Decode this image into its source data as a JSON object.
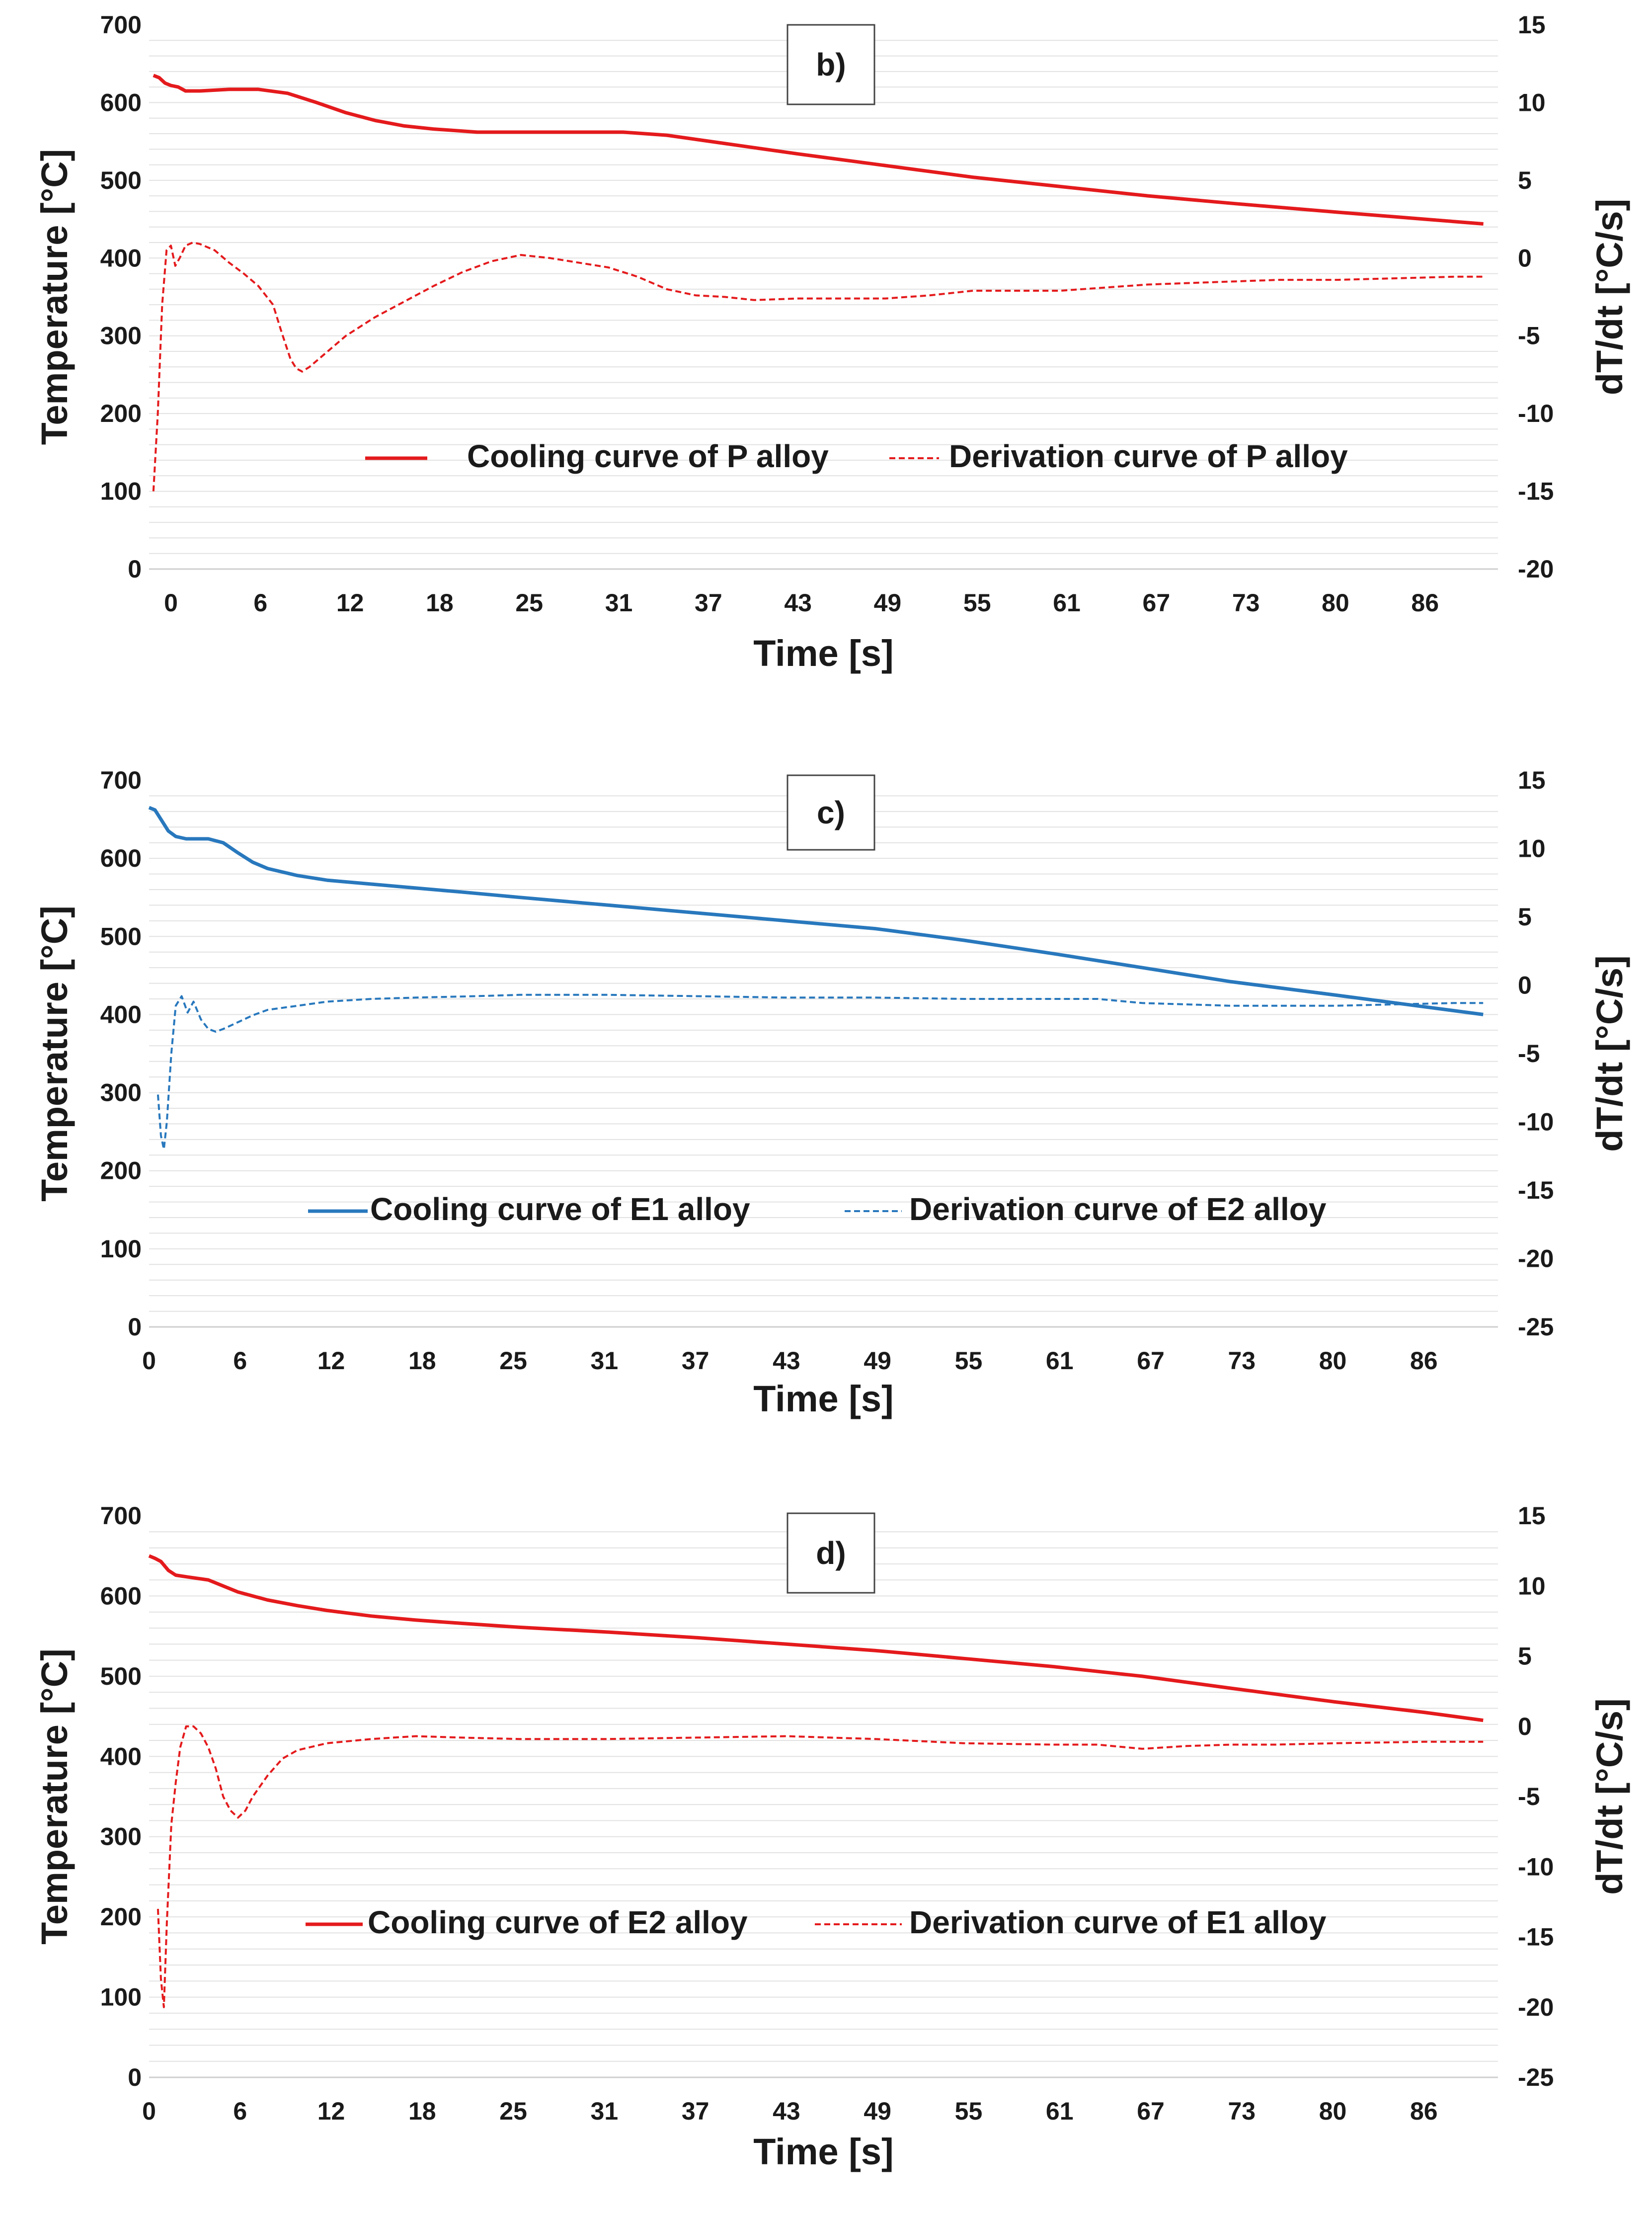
{
  "chart_data": [
    {
      "type": "line",
      "panel_label": "b)",
      "xlabel": "Time [s]",
      "ylabel": "Temperature [°C]",
      "ylabel2": "dT/dt [°C/s]",
      "x_ticks": [
        "0",
        "6",
        "12",
        "18",
        "25",
        "31",
        "37",
        "43",
        "49",
        "55",
        "61",
        "67",
        "73",
        "80",
        "86"
      ],
      "xlim": [
        -1.5,
        91
      ],
      "ylim": [
        0,
        700
      ],
      "y_ticks": [
        0,
        100,
        200,
        300,
        400,
        500,
        600,
        700
      ],
      "y2lim": [
        -20,
        15
      ],
      "y2_ticks": [
        -20,
        -15,
        -10,
        -5,
        0,
        5,
        10,
        15
      ],
      "grid": "horizontal minor lines",
      "legend_position": "lower-center",
      "colors": {
        "series": "#e41a1c"
      },
      "series": [
        {
          "name": "Cooling curve of P alloy",
          "axis": "left",
          "style": "solid",
          "points": [
            [
              -1.2,
              635
            ],
            [
              -0.8,
              632
            ],
            [
              -0.4,
              625
            ],
            [
              0,
              622
            ],
            [
              0.5,
              620
            ],
            [
              1,
              615
            ],
            [
              2,
              615
            ],
            [
              4,
              617
            ],
            [
              6,
              617
            ],
            [
              8,
              612
            ],
            [
              10,
              600
            ],
            [
              12,
              587
            ],
            [
              14,
              577
            ],
            [
              16,
              570
            ],
            [
              18,
              566
            ],
            [
              21,
              562
            ],
            [
              25,
              562
            ],
            [
              31,
              562
            ],
            [
              34,
              558
            ],
            [
              37,
              550
            ],
            [
              40,
              542
            ],
            [
              43,
              534
            ],
            [
              47,
              524
            ],
            [
              51,
              514
            ],
            [
              55,
              504
            ],
            [
              61,
              492
            ],
            [
              67,
              480
            ],
            [
              73,
              470
            ],
            [
              80,
              459
            ],
            [
              86,
              450
            ],
            [
              90,
              444
            ]
          ]
        },
        {
          "name": "Derivation curve of P alloy",
          "axis": "right",
          "style": "dashed",
          "points": [
            [
              -1.2,
              -15
            ],
            [
              -0.9,
              -10
            ],
            [
              -0.6,
              -3
            ],
            [
              -0.3,
              0.5
            ],
            [
              0,
              0.8
            ],
            [
              0.3,
              -0.5
            ],
            [
              0.6,
              0
            ],
            [
              1,
              0.8
            ],
            [
              1.5,
              1
            ],
            [
              2,
              0.9
            ],
            [
              3,
              0.5
            ],
            [
              4,
              -0.3
            ],
            [
              5,
              -1
            ],
            [
              6,
              -1.8
            ],
            [
              7,
              -3
            ],
            [
              7.6,
              -4.8
            ],
            [
              8.2,
              -6.5
            ],
            [
              8.6,
              -7.1
            ],
            [
              9,
              -7.3
            ],
            [
              9.5,
              -7
            ],
            [
              10.5,
              -6.2
            ],
            [
              12,
              -5
            ],
            [
              14,
              -3.8
            ],
            [
              16,
              -2.8
            ],
            [
              18,
              -1.8
            ],
            [
              20,
              -0.9
            ],
            [
              22,
              -0.2
            ],
            [
              24,
              0.2
            ],
            [
              26,
              0
            ],
            [
              28,
              -0.3
            ],
            [
              30,
              -0.6
            ],
            [
              32,
              -1.2
            ],
            [
              34,
              -2
            ],
            [
              36,
              -2.4
            ],
            [
              38,
              -2.5
            ],
            [
              40,
              -2.7
            ],
            [
              43,
              -2.6
            ],
            [
              46,
              -2.6
            ],
            [
              49,
              -2.6
            ],
            [
              52,
              -2.4
            ],
            [
              55,
              -2.1
            ],
            [
              58,
              -2.1
            ],
            [
              61,
              -2.1
            ],
            [
              64,
              -1.9
            ],
            [
              67,
              -1.7
            ],
            [
              70,
              -1.6
            ],
            [
              73,
              -1.5
            ],
            [
              76,
              -1.4
            ],
            [
              80,
              -1.4
            ],
            [
              84,
              -1.3
            ],
            [
              88,
              -1.2
            ],
            [
              90,
              -1.2
            ]
          ]
        }
      ]
    },
    {
      "type": "line",
      "panel_label": "c)",
      "xlabel": "Time [s]",
      "ylabel": "Temperature [°C]",
      "ylabel2": "dT/dt [°C/s]",
      "x_ticks": [
        "0",
        "6",
        "12",
        "18",
        "25",
        "31",
        "37",
        "43",
        "49",
        "55",
        "61",
        "67",
        "73",
        "80",
        "86"
      ],
      "xlim": [
        0,
        91
      ],
      "ylim": [
        0,
        700
      ],
      "y_ticks": [
        0,
        100,
        200,
        300,
        400,
        500,
        600,
        700
      ],
      "y2lim": [
        -25,
        15
      ],
      "y2_ticks": [
        -25,
        -20,
        -15,
        -10,
        -5,
        0,
        5,
        10,
        15
      ],
      "grid": "horizontal minor lines",
      "legend_position": "lower-center",
      "colors": {
        "series": "#2878bd"
      },
      "series": [
        {
          "name": "Cooling curve of E1 alloy",
          "axis": "left",
          "style": "solid",
          "points": [
            [
              0,
              665
            ],
            [
              0.4,
              662
            ],
            [
              0.8,
              650
            ],
            [
              1.3,
              635
            ],
            [
              1.8,
              628
            ],
            [
              2.5,
              625
            ],
            [
              4,
              625
            ],
            [
              5,
              620
            ],
            [
              6,
              607
            ],
            [
              7,
              595
            ],
            [
              8,
              587
            ],
            [
              10,
              578
            ],
            [
              12,
              572
            ],
            [
              15,
              567
            ],
            [
              18,
              562
            ],
            [
              21,
              557
            ],
            [
              25,
              550
            ],
            [
              31,
              540
            ],
            [
              37,
              530
            ],
            [
              43,
              520
            ],
            [
              49,
              510
            ],
            [
              55,
              495
            ],
            [
              61,
              478
            ],
            [
              67,
              460
            ],
            [
              73,
              442
            ],
            [
              80,
              425
            ],
            [
              86,
              410
            ],
            [
              90,
              400
            ]
          ]
        },
        {
          "name": "Derivation curve of E2 alloy",
          "axis": "right",
          "style": "dashed",
          "points": [
            [
              0.6,
              -8
            ],
            [
              0.8,
              -11
            ],
            [
              1,
              -12
            ],
            [
              1.2,
              -10
            ],
            [
              1.5,
              -5
            ],
            [
              1.8,
              -1.5
            ],
            [
              2.2,
              -0.8
            ],
            [
              2.6,
              -2
            ],
            [
              3,
              -1.2
            ],
            [
              3.5,
              -2.5
            ],
            [
              4,
              -3.2
            ],
            [
              4.5,
              -3.4
            ],
            [
              5,
              -3.2
            ],
            [
              6,
              -2.7
            ],
            [
              7,
              -2.2
            ],
            [
              8,
              -1.8
            ],
            [
              10,
              -1.5
            ],
            [
              12,
              -1.2
            ],
            [
              15,
              -1
            ],
            [
              18,
              -0.9
            ],
            [
              22,
              -0.8
            ],
            [
              25,
              -0.7
            ],
            [
              31,
              -0.7
            ],
            [
              37,
              -0.8
            ],
            [
              43,
              -0.9
            ],
            [
              49,
              -0.9
            ],
            [
              55,
              -1
            ],
            [
              61,
              -1
            ],
            [
              64,
              -1
            ],
            [
              67,
              -1.3
            ],
            [
              70,
              -1.4
            ],
            [
              73,
              -1.5
            ],
            [
              76,
              -1.5
            ],
            [
              80,
              -1.5
            ],
            [
              84,
              -1.4
            ],
            [
              88,
              -1.3
            ],
            [
              90,
              -1.3
            ]
          ]
        }
      ]
    },
    {
      "type": "line",
      "panel_label": "d)",
      "xlabel": "Time [s]",
      "ylabel": "Temperature [°C]",
      "ylabel2": "dT/dt [°C/s]",
      "x_ticks": [
        "0",
        "6",
        "12",
        "18",
        "25",
        "31",
        "37",
        "43",
        "49",
        "55",
        "61",
        "67",
        "73",
        "80",
        "86"
      ],
      "xlim": [
        0,
        91
      ],
      "ylim": [
        0,
        700
      ],
      "y_ticks": [
        0,
        100,
        200,
        300,
        400,
        500,
        600,
        700
      ],
      "y2lim": [
        -25,
        15
      ],
      "y2_ticks": [
        -25,
        -20,
        -15,
        -10,
        -5,
        0,
        5,
        10,
        15
      ],
      "grid": "horizontal minor lines",
      "legend_position": "lower-center",
      "colors": {
        "series": "#e41a1c"
      },
      "series": [
        {
          "name": "Cooling curve of E2 alloy",
          "axis": "left",
          "style": "solid",
          "points": [
            [
              0,
              650
            ],
            [
              0.4,
              647
            ],
            [
              0.8,
              643
            ],
            [
              1.3,
              632
            ],
            [
              1.8,
              626
            ],
            [
              2.5,
              624
            ],
            [
              4,
              620
            ],
            [
              6,
              605
            ],
            [
              8,
              595
            ],
            [
              10,
              588
            ],
            [
              12,
              582
            ],
            [
              15,
              575
            ],
            [
              18,
              570
            ],
            [
              21,
              566
            ],
            [
              25,
              561
            ],
            [
              31,
              555
            ],
            [
              37,
              548
            ],
            [
              43,
              540
            ],
            [
              49,
              532
            ],
            [
              55,
              522
            ],
            [
              61,
              512
            ],
            [
              67,
              500
            ],
            [
              73,
              485
            ],
            [
              80,
              468
            ],
            [
              86,
              455
            ],
            [
              90,
              445
            ]
          ]
        },
        {
          "name": "Derivation curve of E1 alloy",
          "axis": "right",
          "style": "dashed",
          "points": [
            [
              0.6,
              -13
            ],
            [
              0.8,
              -18
            ],
            [
              1,
              -20
            ],
            [
              1.2,
              -14
            ],
            [
              1.5,
              -7
            ],
            [
              1.8,
              -4
            ],
            [
              2.1,
              -1.5
            ],
            [
              2.5,
              0
            ],
            [
              3,
              0
            ],
            [
              3.5,
              -0.5
            ],
            [
              4,
              -1.5
            ],
            [
              4.5,
              -3
            ],
            [
              5,
              -5
            ],
            [
              5.5,
              -6
            ],
            [
              6,
              -6.5
            ],
            [
              6.5,
              -6
            ],
            [
              7,
              -5
            ],
            [
              8,
              -3.5
            ],
            [
              9,
              -2.3
            ],
            [
              10,
              -1.7
            ],
            [
              12,
              -1.2
            ],
            [
              15,
              -0.9
            ],
            [
              18,
              -0.7
            ],
            [
              21,
              -0.8
            ],
            [
              25,
              -0.9
            ],
            [
              31,
              -0.9
            ],
            [
              37,
              -0.8
            ],
            [
              43,
              -0.7
            ],
            [
              49,
              -0.9
            ],
            [
              55,
              -1.2
            ],
            [
              61,
              -1.3
            ],
            [
              64,
              -1.3
            ],
            [
              67,
              -1.6
            ],
            [
              70,
              -1.4
            ],
            [
              73,
              -1.3
            ],
            [
              76,
              -1.3
            ],
            [
              80,
              -1.2
            ],
            [
              86,
              -1.1
            ],
            [
              90,
              -1.1
            ]
          ]
        }
      ]
    }
  ]
}
